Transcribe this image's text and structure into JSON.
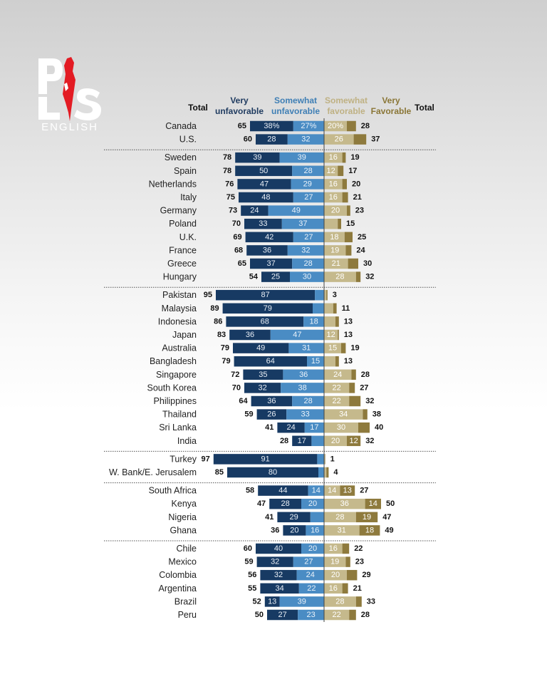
{
  "brand": {
    "logo_letters": "PLS",
    "subtitle": "ENGLISH"
  },
  "headers": {
    "total_left": "Total",
    "very_unfavorable": [
      "Very",
      "unfavorable"
    ],
    "somewhat_unfavorable": [
      "Somewhat",
      "unfavorable"
    ],
    "somewhat_favorable": [
      "Somewhat",
      "favorable"
    ],
    "very_favorable": [
      "Very",
      "Favorable"
    ],
    "total_right": "Total"
  },
  "colors": {
    "very_unfavorable": "#173a63",
    "somewhat_unfavorable": "#4a8cc4",
    "somewhat_favorable": "#c5b98c",
    "very_favorable": "#8e7a3d",
    "header_dark": "#1e3a5f",
    "header_blue": "#3f7fb5",
    "header_tan": "#bfb183",
    "header_olive": "#8a7636"
  },
  "chart_data": {
    "type": "bar",
    "orientation": "horizontal-diverging",
    "series": [
      {
        "name": "Very unfavorable",
        "key": "vu"
      },
      {
        "name": "Somewhat unfavorable",
        "key": "su"
      },
      {
        "name": "Somewhat favorable",
        "key": "sf"
      },
      {
        "name": "Very Favorable",
        "key": "vf"
      }
    ],
    "groups": [
      {
        "rows": [
          {
            "country": "Canada",
            "total_unf": "65",
            "vu": 38,
            "su": 27,
            "vu_label": "38%",
            "su_label": "27%",
            "sf": 20,
            "vf": 8,
            "sf_label": "20%",
            "vf_label": "",
            "total_fav": "28"
          },
          {
            "country": "U.S.",
            "total_unf": "60",
            "vu": 28,
            "su": 32,
            "vu_label": "28",
            "su_label": "32",
            "sf": 26,
            "vf": 11,
            "sf_label": "26",
            "vf_label": "",
            "total_fav": "37"
          }
        ]
      },
      {
        "rows": [
          {
            "country": "Sweden",
            "total_unf": "78",
            "vu": 39,
            "su": 39,
            "vu_label": "39",
            "su_label": "39",
            "sf": 16,
            "vf": 3,
            "sf_label": "16",
            "vf_label": "",
            "total_fav": "19"
          },
          {
            "country": "Spain",
            "total_unf": "78",
            "vu": 50,
            "su": 28,
            "vu_label": "50",
            "su_label": "28",
            "sf": 12,
            "vf": 5,
            "sf_label": "12",
            "vf_label": "",
            "total_fav": "17"
          },
          {
            "country": "Netherlands",
            "total_unf": "76",
            "vu": 47,
            "su": 29,
            "vu_label": "47",
            "su_label": "29",
            "sf": 16,
            "vf": 4,
            "sf_label": "16",
            "vf_label": "",
            "total_fav": "20"
          },
          {
            "country": "Italy",
            "total_unf": "75",
            "vu": 48,
            "su": 27,
            "vu_label": "48",
            "su_label": "27",
            "sf": 16,
            "vf": 5,
            "sf_label": "16",
            "vf_label": "",
            "total_fav": "21"
          },
          {
            "country": "Germany",
            "total_unf": "73",
            "vu": 24,
            "su": 49,
            "vu_label": "24",
            "su_label": "49",
            "sf": 20,
            "vf": 3,
            "sf_label": "20",
            "vf_label": "",
            "total_fav": "23"
          },
          {
            "country": "Poland",
            "total_unf": "70",
            "vu": 33,
            "su": 37,
            "vu_label": "33",
            "su_label": "37",
            "sf": 12,
            "vf": 3,
            "sf_label": "",
            "vf_label": "",
            "total_fav": "15"
          },
          {
            "country": "U.K.",
            "total_unf": "69",
            "vu": 42,
            "su": 27,
            "vu_label": "42",
            "su_label": "27",
            "sf": 18,
            "vf": 7,
            "sf_label": "18",
            "vf_label": "",
            "total_fav": "25"
          },
          {
            "country": "France",
            "total_unf": "68",
            "vu": 36,
            "su": 32,
            "vu_label": "36",
            "su_label": "32",
            "sf": 19,
            "vf": 5,
            "sf_label": "19",
            "vf_label": "",
            "total_fav": "24"
          },
          {
            "country": "Greece",
            "total_unf": "65",
            "vu": 37,
            "su": 28,
            "vu_label": "37",
            "su_label": "28",
            "sf": 21,
            "vf": 9,
            "sf_label": "21",
            "vf_label": "",
            "total_fav": "30"
          },
          {
            "country": "Hungary",
            "total_unf": "54",
            "vu": 25,
            "su": 30,
            "vu_label": "25",
            "su_label": "30",
            "sf": 28,
            "vf": 4,
            "sf_label": "28",
            "vf_label": "",
            "total_fav": "32"
          }
        ]
      },
      {
        "rows": [
          {
            "country": "Pakistan",
            "total_unf": "95",
            "vu": 87,
            "su": 8,
            "vu_label": "87",
            "su_label": "",
            "sf": 2,
            "vf": 1,
            "sf_label": "",
            "vf_label": "",
            "total_fav": "3"
          },
          {
            "country": "Malaysia",
            "total_unf": "89",
            "vu": 79,
            "su": 10,
            "vu_label": "79",
            "su_label": "",
            "sf": 8,
            "vf": 3,
            "sf_label": "",
            "vf_label": "",
            "total_fav": "11"
          },
          {
            "country": "Indonesia",
            "total_unf": "86",
            "vu": 68,
            "su": 18,
            "vu_label": "68",
            "su_label": "18",
            "sf": 10,
            "vf": 3,
            "sf_label": "",
            "vf_label": "",
            "total_fav": "13"
          },
          {
            "country": "Japan",
            "total_unf": "83",
            "vu": 36,
            "su": 47,
            "vu_label": "36",
            "su_label": "47",
            "sf": 12,
            "vf": 1,
            "sf_label": "12",
            "vf_label": "",
            "total_fav": "13"
          },
          {
            "country": "Australia",
            "total_unf": "79",
            "vu": 49,
            "su": 31,
            "vu_label": "49",
            "su_label": "31",
            "sf": 15,
            "vf": 4,
            "sf_label": "15",
            "vf_label": "",
            "total_fav": "19"
          },
          {
            "country": "Bangladesh",
            "total_unf": "79",
            "vu": 64,
            "su": 15,
            "vu_label": "64",
            "su_label": "15",
            "sf": 10,
            "vf": 3,
            "sf_label": "",
            "vf_label": "",
            "total_fav": "13"
          },
          {
            "country": "Singapore",
            "total_unf": "72",
            "vu": 35,
            "su": 36,
            "vu_label": "35",
            "su_label": "36",
            "sf": 24,
            "vf": 4,
            "sf_label": "24",
            "vf_label": "",
            "total_fav": "28"
          },
          {
            "country": "South Korea",
            "total_unf": "70",
            "vu": 32,
            "su": 38,
            "vu_label": "32",
            "su_label": "38",
            "sf": 22,
            "vf": 5,
            "sf_label": "22",
            "vf_label": "",
            "total_fav": "27"
          },
          {
            "country": "Philippines",
            "total_unf": "64",
            "vu": 36,
            "su": 28,
            "vu_label": "36",
            "su_label": "28",
            "sf": 22,
            "vf": 10,
            "sf_label": "22",
            "vf_label": "",
            "total_fav": "32"
          },
          {
            "country": "Thailand",
            "total_unf": "59",
            "vu": 26,
            "su": 33,
            "vu_label": "26",
            "su_label": "33",
            "sf": 34,
            "vf": 4,
            "sf_label": "34",
            "vf_label": "",
            "total_fav": "38"
          },
          {
            "country": "Sri Lanka",
            "total_unf": "41",
            "vu": 24,
            "su": 17,
            "vu_label": "24",
            "su_label": "17",
            "sf": 30,
            "vf": 10,
            "sf_label": "30",
            "vf_label": "",
            "total_fav": "40"
          },
          {
            "country": "India",
            "total_unf": "28",
            "vu": 17,
            "su": 11,
            "vu_label": "17",
            "su_label": "",
            "sf": 20,
            "vf": 12,
            "sf_label": "20",
            "vf_label": "12",
            "total_fav": "32"
          }
        ]
      },
      {
        "rows": [
          {
            "country": "Turkey",
            "total_unf": "97",
            "vu": 91,
            "su": 6,
            "vu_label": "91",
            "su_label": "",
            "sf": 0.6,
            "vf": 0.4,
            "sf_label": "",
            "vf_label": "",
            "total_fav": "1"
          },
          {
            "country": "W. Bank/E. Jerusalem",
            "total_unf": "85",
            "vu": 80,
            "su": 5,
            "vu_label": "80",
            "su_label": "",
            "sf": 2,
            "vf": 2,
            "sf_label": "",
            "vf_label": "",
            "total_fav": "4"
          }
        ]
      },
      {
        "rows": [
          {
            "country": "South Africa",
            "total_unf": "58",
            "vu": 44,
            "su": 14,
            "vu_label": "44",
            "su_label": "14",
            "sf": 14,
            "vf": 13,
            "sf_label": "14",
            "vf_label": "13",
            "total_fav": "27"
          },
          {
            "country": "Kenya",
            "total_unf": "47",
            "vu": 28,
            "su": 20,
            "vu_label": "28",
            "su_label": "20",
            "sf": 36,
            "vf": 14,
            "sf_label": "36",
            "vf_label": "14",
            "total_fav": "50"
          },
          {
            "country": "Nigeria",
            "total_unf": "41",
            "vu": 29,
            "su": 12,
            "vu_label": "29",
            "su_label": "",
            "sf": 28,
            "vf": 19,
            "sf_label": "28",
            "vf_label": "19",
            "total_fav": "47"
          },
          {
            "country": "Ghana",
            "total_unf": "36",
            "vu": 20,
            "su": 16,
            "vu_label": "20",
            "su_label": "16",
            "sf": 31,
            "vf": 18,
            "sf_label": "31",
            "vf_label": "18",
            "total_fav": "49"
          }
        ]
      },
      {
        "rows": [
          {
            "country": "Chile",
            "total_unf": "60",
            "vu": 40,
            "su": 20,
            "vu_label": "40",
            "su_label": "20",
            "sf": 16,
            "vf": 6,
            "sf_label": "16",
            "vf_label": "",
            "total_fav": "22"
          },
          {
            "country": "Mexico",
            "total_unf": "59",
            "vu": 32,
            "su": 27,
            "vu_label": "32",
            "su_label": "27",
            "sf": 19,
            "vf": 4,
            "sf_label": "19",
            "vf_label": "",
            "total_fav": "23"
          },
          {
            "country": "Colombia",
            "total_unf": "56",
            "vu": 32,
            "su": 24,
            "vu_label": "32",
            "su_label": "24",
            "sf": 20,
            "vf": 9,
            "sf_label": "20",
            "vf_label": "",
            "total_fav": "29"
          },
          {
            "country": "Argentina",
            "total_unf": "55",
            "vu": 34,
            "su": 22,
            "vu_label": "34",
            "su_label": "22",
            "sf": 16,
            "vf": 5,
            "sf_label": "16",
            "vf_label": "",
            "total_fav": "21"
          },
          {
            "country": "Brazil",
            "total_unf": "52",
            "vu": 13,
            "su": 39,
            "vu_label": "13",
            "su_label": "39",
            "sf": 28,
            "vf": 5,
            "sf_label": "28",
            "vf_label": "",
            "total_fav": "33"
          },
          {
            "country": "Peru",
            "total_unf": "50",
            "vu": 27,
            "su": 23,
            "vu_label": "27",
            "su_label": "23",
            "sf": 22,
            "vf": 6,
            "sf_label": "22",
            "vf_label": "",
            "total_fav": "28"
          }
        ]
      }
    ]
  }
}
